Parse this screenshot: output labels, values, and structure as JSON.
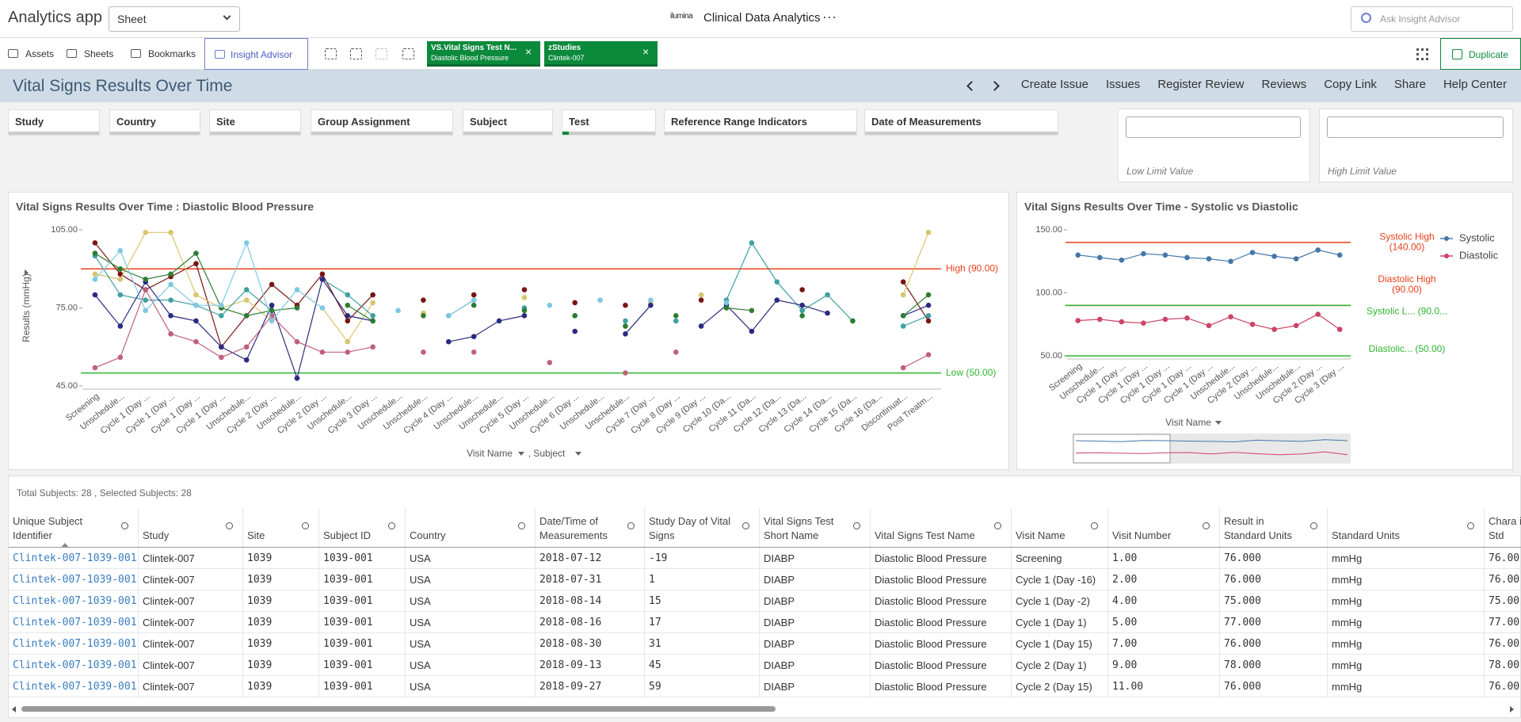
{
  "app": {
    "name": "Analytics app",
    "sheet_select": "Sheet",
    "brand": "ilumina",
    "title": "Clinical Data Analytics",
    "more": "···",
    "search_placeholder": "Ask Insight Advisor"
  },
  "toolbar": {
    "items": [
      "Assets",
      "Sheets",
      "Bookmarks",
      "Insight Advisor"
    ],
    "selections": [
      {
        "field": "VS.Vital Signs Test N...",
        "value": "Diastolic Blood Pressure"
      },
      {
        "field": "zStudies",
        "value": "Clintek-007"
      }
    ],
    "duplicate": "Duplicate"
  },
  "sheet": {
    "title": "Vital Signs Results Over Time",
    "actions": [
      "Create Issue",
      "Issues",
      "Register Review",
      "Reviews",
      "Copy Link",
      "Share",
      "Help Center"
    ]
  },
  "filters": [
    "Study",
    "Country",
    "Site",
    "Group Assignment",
    "Subject",
    "Test",
    "Reference Range Indicators",
    "Date of Measurements"
  ],
  "limits": [
    "Low Limit Value",
    "High Limit Value"
  ],
  "charts": [
    {
      "type": "line",
      "title": "Vital Signs Results Over Time : Diastolic Blood Pressure",
      "y_label": "Results (mmHg)",
      "x_labels": [
        "Visit Name",
        ", Subject"
      ],
      "categories": [
        "Screening",
        "Unschedule...",
        "Cycle 1 (Day ...",
        "Cycle 1 (Day ...",
        "Cycle 1 (Day ...",
        "Cycle 1 (Day ...",
        "Unschedule...",
        "Cycle 2 (Day ...",
        "Unschedule...",
        "Cycle 2 (Day ...",
        "Unschedule...",
        "Cycle 3 (Day ...",
        "Unschedule...",
        "Unschedule...",
        "Cycle 4 (Day ...",
        "Unschedule...",
        "Unschedule...",
        "Cycle 5 (Day ...",
        "Unschedule...",
        "Cycle 6 (Day ...",
        "Unschedule...",
        "Unschedule...",
        "Cycle 7 (Day ...",
        "Cycle 8 (Day ...",
        "Cycle 9 (Day ...",
        "Cycle 10 (Da...",
        "Cycle 11 (Da...",
        "Cycle 12 (Da...",
        "Cycle 13 (Da...",
        "Cycle 14 (Da...",
        "Cycle 15 (Da...",
        "Cycle 16 (Da...",
        "Discontinuat...",
        "Post Treatm..."
      ],
      "ylim": [
        45,
        105
      ],
      "yticks": [
        {
          "value": 105,
          "label": "105.00"
        },
        {
          "value": 75,
          "label": "75.00"
        },
        {
          "value": 45,
          "label": "45.00"
        }
      ],
      "reference_lines": [
        {
          "value": 90,
          "label": [
            "High (90.00)"
          ],
          "color": "#e8401c"
        },
        {
          "value": 50,
          "label": [
            "Low (50.00)"
          ],
          "color": "#2fb52f"
        }
      ],
      "series": [
        {
          "color": "#7a1414",
          "values": [
            100,
            88,
            82,
            87,
            92,
            60,
            72,
            84,
            76,
            88,
            70,
            80,
            null,
            78,
            null,
            80,
            null,
            82,
            null,
            77,
            null,
            76,
            null,
            null,
            78,
            null,
            null,
            null,
            82,
            null,
            null,
            null,
            85,
            70
          ]
        },
        {
          "color": "#d8c46c",
          "values": [
            88,
            86,
            104,
            104,
            80,
            75,
            78,
            70,
            null,
            75,
            62,
            77,
            null,
            73,
            null,
            78,
            null,
            79,
            null,
            null,
            78,
            null,
            77,
            null,
            80,
            null,
            null,
            null,
            null,
            null,
            null,
            null,
            80,
            104
          ]
        },
        {
          "color": "#40a0a0",
          "values": [
            95,
            80,
            78,
            78,
            76,
            72,
            82,
            74,
            null,
            86,
            80,
            72,
            null,
            null,
            72,
            78,
            null,
            75,
            null,
            72,
            null,
            70,
            null,
            70,
            null,
            78,
            100,
            85,
            74,
            80,
            70,
            null,
            68,
            72
          ]
        },
        {
          "color": "#2a2a80",
          "values": [
            80,
            68,
            85,
            72,
            70,
            60,
            55,
            76,
            48,
            86,
            72,
            70,
            null,
            null,
            62,
            64,
            70,
            72,
            null,
            66,
            null,
            65,
            76,
            null,
            68,
            76,
            66,
            78,
            76,
            73,
            null,
            null,
            72,
            76
          ]
        },
        {
          "color": "#c0607a",
          "values": [
            52,
            56,
            82,
            65,
            62,
            56,
            60,
            72,
            62,
            58,
            58,
            60,
            null,
            58,
            null,
            58,
            null,
            null,
            54,
            null,
            null,
            50,
            null,
            58,
            null,
            null,
            null,
            null,
            null,
            null,
            null,
            null,
            52,
            57
          ]
        },
        {
          "color": "#2e7d32",
          "values": [
            96,
            90,
            86,
            88,
            96,
            75,
            72,
            74,
            75,
            null,
            76,
            70,
            null,
            72,
            null,
            76,
            null,
            74,
            null,
            72,
            null,
            68,
            null,
            72,
            null,
            75,
            74,
            null,
            72,
            null,
            70,
            null,
            72,
            80
          ]
        },
        {
          "color": "#7ec8e3",
          "values": [
            86,
            97,
            74,
            84,
            76,
            76,
            100,
            70,
            82,
            75,
            null,
            null,
            74,
            null,
            72,
            78,
            null,
            null,
            76,
            null,
            78,
            null,
            78,
            null,
            null,
            77,
            null,
            null,
            null,
            null,
            null,
            null,
            null,
            null
          ]
        }
      ]
    },
    {
      "type": "line",
      "title": "Vital Signs Results Over Time - Systolic vs Diastolic",
      "x_labels": [
        "Visit Name"
      ],
      "categories": [
        "Screening",
        "Unschedule...",
        "Cycle 1 (Day ...",
        "Cycle 1 (Day ...",
        "Cycle 1 (Day ...",
        "Cycle 1 (Day ...",
        "Cycle 1 (Day ...",
        "Unschedule...",
        "Cycle 2 (Day ...",
        "Unschedule...",
        "Unschedule...",
        "Cycle 2 (Day ...",
        "Cycle 3 (Day ..."
      ],
      "ylim": [
        50,
        150
      ],
      "yticks": [
        {
          "value": 150,
          "label": "150.00"
        },
        {
          "value": 100,
          "label": "100.00"
        },
        {
          "value": 50,
          "label": "50.00"
        }
      ],
      "reference_lines": [
        {
          "value": 140,
          "label": [
            "Systolic High",
            "(140.00)"
          ],
          "color": "#e8401c"
        },
        {
          "value": 90,
          "label": [
            "Diastolic High",
            "(90.00)"
          ],
          "color": "#e8401c"
        },
        {
          "value": 90,
          "label": [
            "Systolic L... (90.0..."
          ],
          "color": "#2fb52f"
        },
        {
          "value": 50,
          "label": [
            "Diastolic... (50.00)"
          ],
          "color": "#2fb52f"
        }
      ],
      "legend": "right",
      "series": [
        {
          "name": "Systolic",
          "color": "#4477aa",
          "values": [
            130,
            128,
            126,
            131,
            130,
            128,
            127,
            125,
            132,
            129,
            127,
            134,
            130
          ]
        },
        {
          "name": "Diastolic",
          "color": "#cc4466",
          "values": [
            78,
            79,
            77,
            76,
            79,
            80,
            74,
            81,
            75,
            71,
            74,
            83,
            71
          ]
        }
      ]
    }
  ],
  "table": {
    "summary": "Total Subjects: 28 , Selected Subjects: 28",
    "columns": [
      "Unique Subject Identifier",
      "Study",
      "Site",
      "Subject ID",
      "Country",
      "Date/Time of Measurements",
      "Study Day of Vital Signs",
      "Vital Signs Test Short Name",
      "Vital Signs Test Name",
      "Visit Name",
      "Visit Number",
      "Result in Standard Units",
      "Standard Units",
      "Chara in Std"
    ],
    "rows": [
      [
        "Clintek-007-1039-001",
        "Clintek-007",
        "1039",
        "1039-001",
        "USA",
        "2018-07-12",
        "-19",
        "DIABP",
        "Diastolic Blood Pressure",
        "Screening",
        "1.00",
        "76.000",
        "mmHg",
        "76.00"
      ],
      [
        "Clintek-007-1039-001",
        "Clintek-007",
        "1039",
        "1039-001",
        "USA",
        "2018-07-31",
        "1",
        "DIABP",
        "Diastolic Blood Pressure",
        "Cycle 1 (Day -16)",
        "2.00",
        "76.000",
        "mmHg",
        "76.00"
      ],
      [
        "Clintek-007-1039-001",
        "Clintek-007",
        "1039",
        "1039-001",
        "USA",
        "2018-08-14",
        "15",
        "DIABP",
        "Diastolic Blood Pressure",
        "Cycle 1 (Day -2)",
        "4.00",
        "75.000",
        "mmHg",
        "75.00"
      ],
      [
        "Clintek-007-1039-001",
        "Clintek-007",
        "1039",
        "1039-001",
        "USA",
        "2018-08-16",
        "17",
        "DIABP",
        "Diastolic Blood Pressure",
        "Cycle 1 (Day 1)",
        "5.00",
        "77.000",
        "mmHg",
        "77.00"
      ],
      [
        "Clintek-007-1039-001",
        "Clintek-007",
        "1039",
        "1039-001",
        "USA",
        "2018-08-30",
        "31",
        "DIABP",
        "Diastolic Blood Pressure",
        "Cycle 1 (Day 15)",
        "7.00",
        "76.000",
        "mmHg",
        "76.00"
      ],
      [
        "Clintek-007-1039-001",
        "Clintek-007",
        "1039",
        "1039-001",
        "USA",
        "2018-09-13",
        "45",
        "DIABP",
        "Diastolic Blood Pressure",
        "Cycle 2 (Day 1)",
        "9.00",
        "78.000",
        "mmHg",
        "78.00"
      ],
      [
        "Clintek-007-1039-001",
        "Clintek-007",
        "1039",
        "1039-001",
        "USA",
        "2018-09-27",
        "59",
        "DIABP",
        "Diastolic Blood Pressure",
        "Cycle 2 (Day 15)",
        "11.00",
        "76.000",
        "mmHg",
        "76.00"
      ]
    ]
  }
}
